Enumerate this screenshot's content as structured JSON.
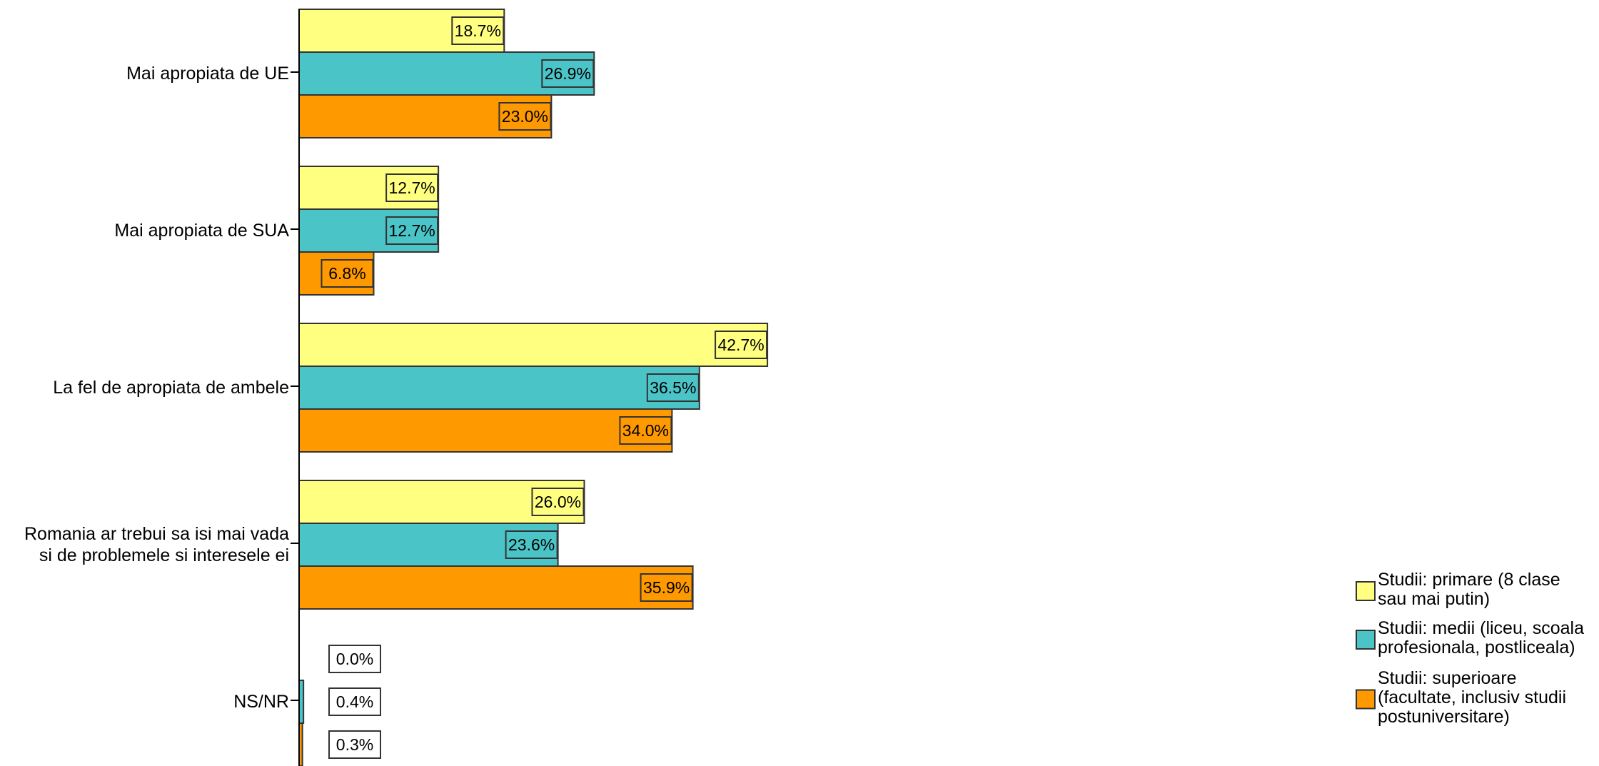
{
  "chart_data": {
    "type": "bar",
    "orientation": "horizontal",
    "categories": [
      [
        "Mai apropiata de UE"
      ],
      [
        "Mai apropiata de SUA"
      ],
      [
        "La fel de apropiata de ambele"
      ],
      [
        "Romania ar trebui sa isi mai vada",
        "si de problemele si interesele ei"
      ],
      [
        "NS/NR"
      ]
    ],
    "series": [
      {
        "name": [
          "Studii: primare (8 clase",
          "sau mai putin)"
        ],
        "color": "#FFFF80",
        "values": [
          18.7,
          12.7,
          42.7,
          26.0,
          0.0
        ],
        "labels": [
          "18.7%",
          "12.7%",
          "42.7%",
          "26.0%",
          "0.0%"
        ]
      },
      {
        "name": [
          "Studii: medii (liceu, scoala",
          "profesionala, postliceala)"
        ],
        "color": "#4BC4C8",
        "values": [
          26.9,
          12.7,
          36.5,
          23.6,
          0.4
        ],
        "labels": [
          "26.9%",
          "12.7%",
          "36.5%",
          "23.6%",
          "0.4%"
        ]
      },
      {
        "name": [
          " Studii: superioare",
          "(facultate, inclusiv studii",
          "postuniversitare)"
        ],
        "color": "#FF9900",
        "values": [
          23.0,
          6.8,
          34.0,
          35.9,
          0.3
        ],
        "labels": [
          "23.0%",
          "6.8%",
          "34.0%",
          "35.9%",
          "0.3%"
        ]
      }
    ],
    "xlim": [
      0,
      45
    ],
    "grid": false,
    "legend_position": "bottom-right",
    "title": "",
    "xlabel": "",
    "ylabel": ""
  }
}
